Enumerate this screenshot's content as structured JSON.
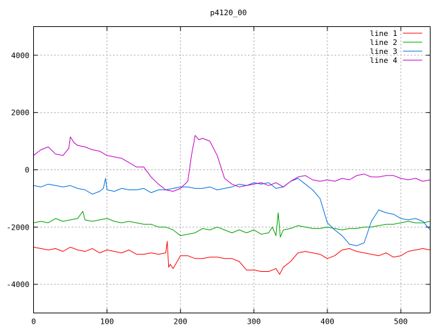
{
  "chart_data": {
    "type": "line",
    "title": "p4120_00",
    "xlabel": "",
    "ylabel": "",
    "xlim": [
      0,
      540
    ],
    "ylim": [
      -5000,
      5000
    ],
    "x_ticks": [
      0,
      100,
      200,
      300,
      400,
      500
    ],
    "y_ticks": [
      -4000,
      -2000,
      0,
      2000,
      4000
    ],
    "grid": true,
    "legend_position": "top-right",
    "series": [
      {
        "name": "line 1",
        "color": "#ff0000",
        "x": [
          0,
          10,
          20,
          30,
          40,
          50,
          60,
          70,
          80,
          90,
          100,
          110,
          120,
          130,
          140,
          150,
          160,
          170,
          180,
          182,
          184,
          186,
          190,
          200,
          210,
          220,
          230,
          240,
          250,
          260,
          270,
          280,
          290,
          300,
          310,
          320,
          330,
          335,
          340,
          350,
          360,
          370,
          380,
          390,
          400,
          410,
          420,
          430,
          440,
          450,
          460,
          470,
          480,
          490,
          500,
          510,
          520,
          530,
          540
        ],
        "y": [
          -2700,
          -2750,
          -2800,
          -2750,
          -2850,
          -2700,
          -2800,
          -2850,
          -2750,
          -2900,
          -2800,
          -2850,
          -2900,
          -2800,
          -2950,
          -2950,
          -2900,
          -2950,
          -2900,
          -2500,
          -3400,
          -3300,
          -3450,
          -3000,
          -3000,
          -3100,
          -3100,
          -3050,
          -3050,
          -3100,
          -3100,
          -3200,
          -3500,
          -3500,
          -3550,
          -3550,
          -3450,
          -3650,
          -3400,
          -3200,
          -2900,
          -2850,
          -2900,
          -2950,
          -3100,
          -3000,
          -2800,
          -2750,
          -2850,
          -2900,
          -2950,
          -3000,
          -2900,
          -3050,
          -3000,
          -2850,
          -2800,
          -2750,
          -2800
        ]
      },
      {
        "name": "line 2",
        "color": "#00a000",
        "x": [
          0,
          10,
          20,
          30,
          40,
          50,
          60,
          67,
          70,
          80,
          90,
          100,
          110,
          120,
          130,
          140,
          150,
          160,
          170,
          180,
          190,
          200,
          210,
          220,
          230,
          240,
          250,
          260,
          270,
          280,
          290,
          300,
          310,
          320,
          325,
          330,
          333,
          336,
          340,
          350,
          360,
          370,
          380,
          390,
          400,
          410,
          420,
          430,
          440,
          450,
          460,
          470,
          480,
          490,
          500,
          510,
          520,
          530,
          540
        ],
        "y": [
          -1850,
          -1800,
          -1850,
          -1700,
          -1800,
          -1750,
          -1700,
          -1450,
          -1750,
          -1800,
          -1750,
          -1700,
          -1800,
          -1850,
          -1800,
          -1850,
          -1900,
          -1900,
          -2000,
          -2000,
          -2100,
          -2300,
          -2250,
          -2200,
          -2050,
          -2100,
          -2000,
          -2100,
          -2200,
          -2100,
          -2200,
          -2100,
          -2250,
          -2200,
          -2000,
          -2300,
          -1500,
          -2350,
          -2100,
          -2050,
          -1950,
          -2000,
          -2050,
          -2050,
          -2000,
          -2050,
          -2100,
          -2050,
          -2050,
          -2000,
          -2000,
          -1950,
          -1900,
          -1900,
          -1850,
          -1800,
          -1850,
          -1850,
          -1800
        ]
      },
      {
        "name": "line 3",
        "color": "#0070e0",
        "x": [
          0,
          10,
          20,
          30,
          40,
          50,
          60,
          70,
          80,
          90,
          95,
          98,
          100,
          110,
          120,
          130,
          140,
          150,
          160,
          170,
          180,
          190,
          200,
          210,
          220,
          230,
          240,
          250,
          260,
          270,
          280,
          290,
          300,
          310,
          320,
          330,
          340,
          350,
          360,
          370,
          380,
          390,
          400,
          410,
          420,
          430,
          440,
          450,
          460,
          470,
          480,
          490,
          500,
          510,
          520,
          530,
          540
        ],
        "y": [
          -550,
          -600,
          -500,
          -550,
          -600,
          -550,
          -650,
          -700,
          -850,
          -750,
          -650,
          -300,
          -700,
          -750,
          -650,
          -700,
          -700,
          -650,
          -800,
          -700,
          -700,
          -650,
          -600,
          -600,
          -650,
          -650,
          -600,
          -700,
          -650,
          -600,
          -500,
          -550,
          -450,
          -500,
          -450,
          -650,
          -600,
          -400,
          -300,
          -500,
          -700,
          -1000,
          -1850,
          -2100,
          -2300,
          -2600,
          -2650,
          -2550,
          -1800,
          -1400,
          -1500,
          -1550,
          -1700,
          -1750,
          -1700,
          -1800,
          -2100
        ]
      },
      {
        "name": "line 4",
        "color": "#c000c0",
        "x": [
          0,
          10,
          20,
          30,
          40,
          48,
          50,
          55,
          60,
          70,
          80,
          90,
          100,
          110,
          120,
          130,
          140,
          150,
          160,
          170,
          180,
          190,
          200,
          210,
          215,
          220,
          225,
          230,
          240,
          250,
          260,
          270,
          280,
          290,
          300,
          310,
          320,
          330,
          340,
          350,
          360,
          370,
          380,
          390,
          400,
          410,
          420,
          430,
          440,
          450,
          460,
          470,
          480,
          490,
          500,
          510,
          520,
          530,
          540
        ],
        "y": [
          500,
          700,
          800,
          550,
          500,
          750,
          1150,
          950,
          850,
          800,
          700,
          650,
          500,
          450,
          400,
          250,
          100,
          100,
          -250,
          -500,
          -700,
          -750,
          -650,
          -400,
          500,
          1200,
          1050,
          1100,
          1000,
          500,
          -300,
          -500,
          -600,
          -550,
          -500,
          -450,
          -550,
          -450,
          -600,
          -400,
          -250,
          -200,
          -350,
          -400,
          -350,
          -400,
          -300,
          -350,
          -200,
          -150,
          -250,
          -250,
          -200,
          -200,
          -300,
          -350,
          -300,
          -400,
          -350
        ]
      }
    ]
  }
}
